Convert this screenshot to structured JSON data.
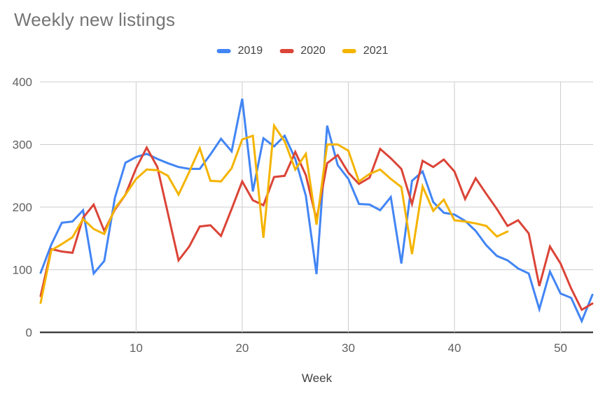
{
  "chart_data": {
    "type": "line",
    "title": "Weekly new listings",
    "xlabel": "Week",
    "ylabel": "",
    "xlim": [
      1,
      53
    ],
    "ylim": [
      0,
      400
    ],
    "x_ticks": [
      10,
      20,
      30,
      40,
      50
    ],
    "y_ticks": [
      0,
      100,
      200,
      300,
      400
    ],
    "grid": true,
    "legend_position": "top",
    "x_unit": "week number (1..53)",
    "series": [
      {
        "name": "2019",
        "color": "#4285F4",
        "values": [
          95,
          140,
          175,
          177,
          195,
          94,
          114,
          215,
          271,
          280,
          285,
          277,
          270,
          264,
          261,
          261,
          284,
          309,
          289,
          373,
          225,
          310,
          297,
          314,
          277,
          218,
          93,
          330,
          267,
          245,
          205,
          204,
          195,
          216,
          110,
          242,
          257,
          208,
          191,
          188,
          178,
          162,
          139,
          122,
          115,
          102,
          94,
          37,
          97,
          62,
          55,
          18,
          60
        ]
      },
      {
        "name": "2020",
        "color": "#DB4437",
        "values": [
          58,
          133,
          129,
          127,
          183,
          204,
          162,
          196,
          220,
          262,
          295,
          264,
          190,
          115,
          137,
          169,
          171,
          154,
          197,
          241,
          211,
          203,
          248,
          250,
          288,
          251,
          180,
          270,
          283,
          255,
          237,
          247,
          293,
          278,
          261,
          205,
          274,
          264,
          276,
          257,
          213,
          246,
          221,
          197,
          170,
          179,
          158,
          74,
          137,
          110,
          70,
          36,
          46
        ]
      },
      {
        "name": "2021",
        "color": "#F4B400",
        "values": [
          47,
          131,
          141,
          152,
          181,
          165,
          157,
          198,
          220,
          245,
          260,
          259,
          250,
          220,
          256,
          294,
          242,
          241,
          262,
          308,
          314,
          151,
          330,
          305,
          260,
          285,
          172,
          300,
          300,
          290,
          241,
          253,
          260,
          245,
          232,
          125,
          233,
          194,
          212,
          179,
          177,
          174,
          170,
          153,
          161
        ]
      }
    ],
    "colors": {
      "background": "#ffffff",
      "gridline": "#cccccc",
      "axis_baseline": "#424242",
      "tick_label": "#616161",
      "axis_title": "#424242",
      "title": "#757575"
    }
  }
}
